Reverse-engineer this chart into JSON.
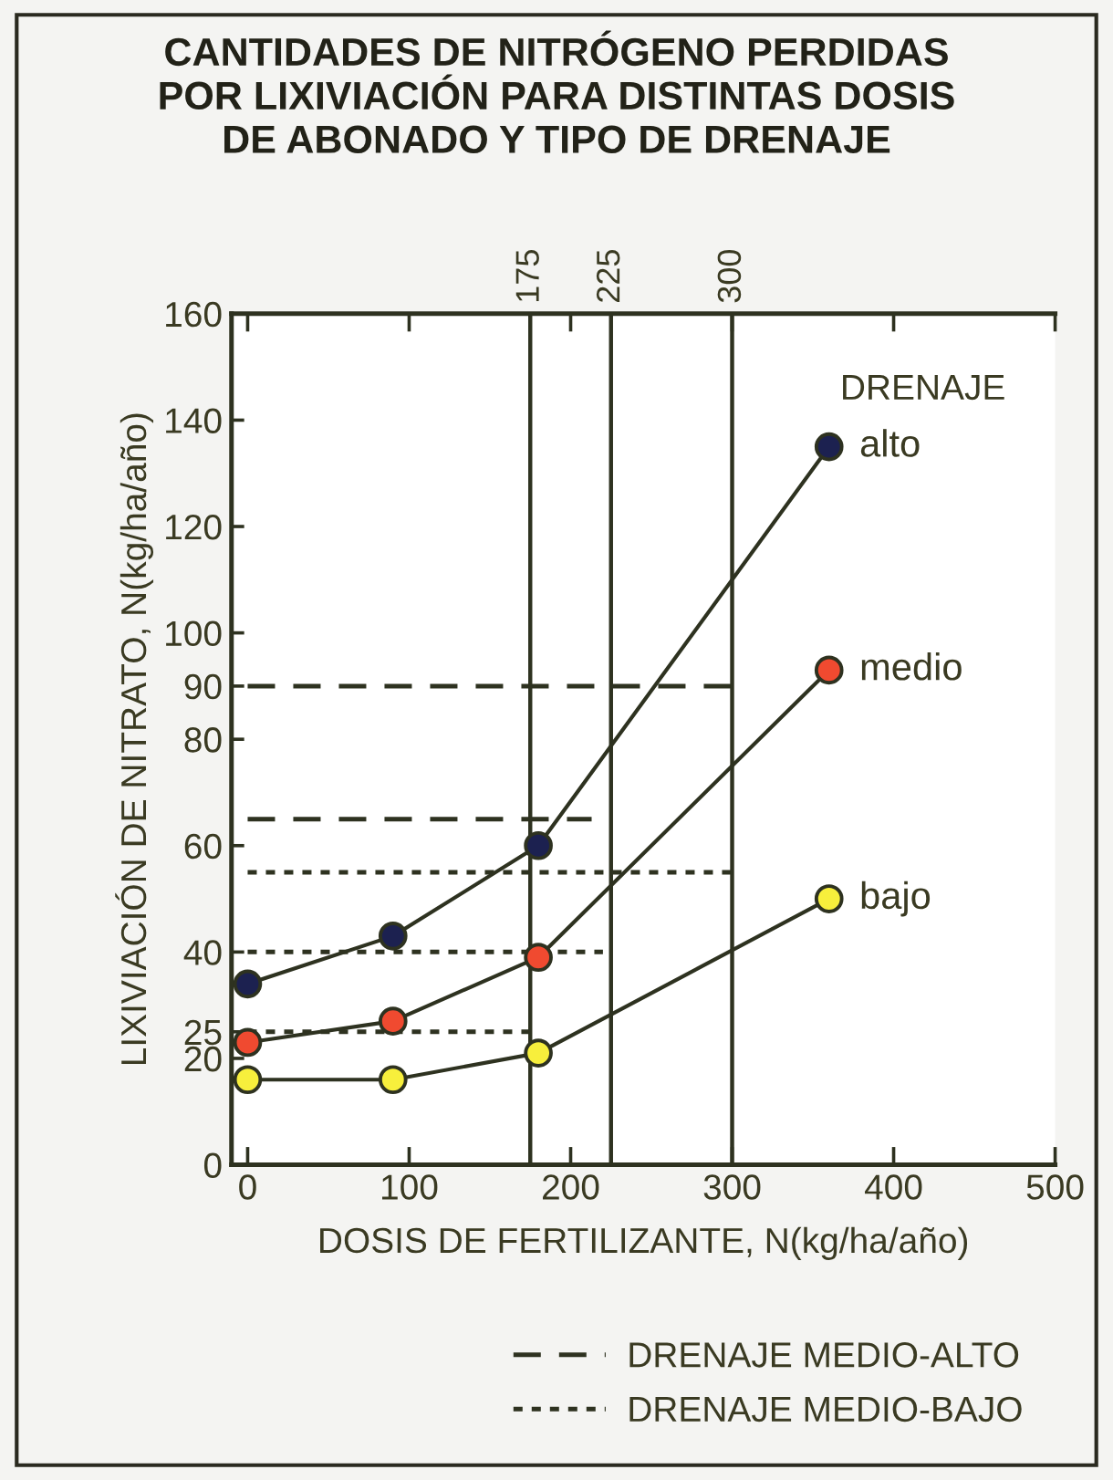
{
  "chart_data": {
    "type": "line",
    "title": "CANTIDADES DE NITRÓGENO PERDIDAS\nPOR LIXIVIACIÓN PARA DISTINTAS DOSIS\nDE ABONADO Y TIPO DE DRENAJE",
    "xlabel": "DOSIS DE FERTILIZANTE, N(kg/ha/año)",
    "ylabel": "LIXIVIACIÓN DE NITRATO, N(kg/ha/año)",
    "x": [
      0,
      90,
      180,
      360
    ],
    "series": [
      {
        "name": "alto",
        "color": "#1c2150",
        "values": [
          34,
          43,
          60,
          135
        ]
      },
      {
        "name": "medio",
        "color": "#f04a30",
        "values": [
          23,
          27,
          39,
          93
        ]
      },
      {
        "name": "bajo",
        "color": "#f7ef3c",
        "values": [
          16,
          16,
          21,
          50
        ]
      },
      {
        "name": "DRENAJE MEDIO-ALTO",
        "color": "#2e3220",
        "marker": "none",
        "line_style": "dashed",
        "x": [
          0,
          300
        ],
        "values": [
          90,
          90
        ]
      },
      {
        "color": "#2e3220",
        "marker": "none",
        "line_style": "dashed",
        "x": [
          0,
          213
        ],
        "values": [
          65,
          65
        ]
      },
      {
        "name": "DRENAJE MEDIO-BAJO",
        "color": "#2e3220",
        "marker": "none",
        "line_style": "dotted",
        "x": [
          0,
          300
        ],
        "values": [
          55,
          55
        ]
      },
      {
        "color": "#2e3220",
        "marker": "none",
        "line_style": "dotted",
        "x": [
          0,
          220
        ],
        "values": [
          40,
          40
        ]
      },
      {
        "color": "#2e3220",
        "marker": "none",
        "line_style": "dotted",
        "x": [
          0,
          175
        ],
        "values": [
          25,
          25
        ]
      }
    ],
    "marker": "circle",
    "line_style": "solid",
    "xlim": [
      -10,
      500
    ],
    "xticks": [
      0,
      100,
      200,
      300,
      400,
      500
    ],
    "ylim": [
      0,
      160
    ],
    "yticks": [
      0,
      20,
      25,
      40,
      60,
      80,
      90,
      100,
      120,
      140,
      160
    ],
    "ref_lines": [
      {
        "axis": "x",
        "value": 175,
        "label": "175"
      },
      {
        "axis": "x",
        "value": 225,
        "label": "225"
      },
      {
        "axis": "x",
        "value": 300,
        "label": "300"
      }
    ],
    "annotations": [
      "DRENAJE"
    ],
    "grid": false,
    "legend": "bottom right"
  }
}
